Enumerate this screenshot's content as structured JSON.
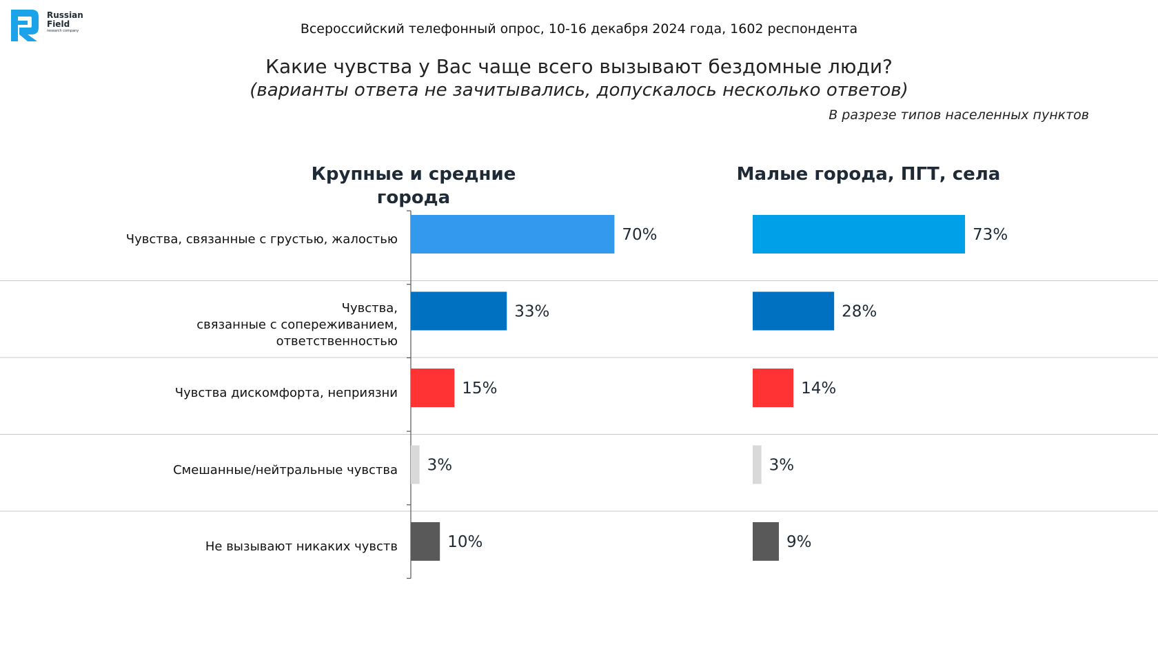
{
  "logo": {
    "name_line1": "Russian",
    "name_line2": "Field",
    "tagline": "research company",
    "color": "#1aa3e8"
  },
  "header": {
    "survey": "Всероссийский телефонный опрос, 10-16 декабря 2024 года, 1602 респондента",
    "question": "Какие чувства у Вас чаще всего вызывают бездомные люди?",
    "note": "(варианты ответа не зачитывались, допускалось несколько ответов)",
    "breakdown": "В разрезе типов населенных пунктов"
  },
  "chart_data": {
    "type": "bar",
    "orientation": "horizontal",
    "categories": [
      "Чувства, связанные с грустью, жалостью",
      "Чувства, связанные с сопереживанием, ответственностью",
      "Чувства дискомфорта, неприязни",
      "Смешанные/нейтральные чувства",
      "Не вызывают никаких чувств"
    ],
    "series": [
      {
        "name": "Крупные и средние города",
        "values": [
          70,
          33,
          15,
          3,
          10
        ],
        "value_labels": [
          "70%",
          "33%",
          "15%",
          "3%",
          "10%"
        ],
        "colors": [
          "#3399ee",
          "#0070c0",
          "#ff3333",
          "#d9d9d9",
          "#595959"
        ]
      },
      {
        "name": "Малые города, ПГТ, села",
        "values": [
          73,
          28,
          14,
          3,
          9
        ],
        "value_labels": [
          "73%",
          "28%",
          "14%",
          "3%",
          "9%"
        ],
        "colors": [
          "#00a0e9",
          "#0070c0",
          "#ff3333",
          "#d9d9d9",
          "#595959"
        ]
      }
    ],
    "unit": "%",
    "xlim": [
      0,
      100
    ],
    "grid": false,
    "legend": "none"
  }
}
